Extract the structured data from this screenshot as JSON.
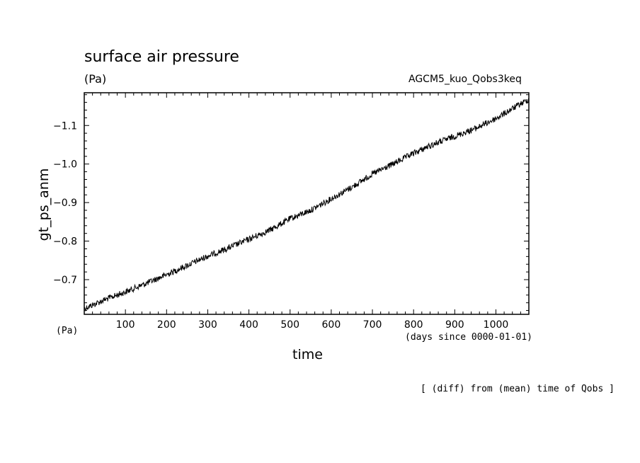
{
  "chart_data": {
    "type": "line",
    "title": "surface air pressure",
    "units": "(Pa)",
    "units_bottom": "(Pa)",
    "experiment": "AGCM5_kuo_Qobs3keq",
    "xlabel": "time",
    "xunits": "(days since 0000-01-01)",
    "ylabel": "gt_ps_anm",
    "footnote": "[ (diff) from (mean) time of Qobs ]",
    "xlim": [
      0,
      1080
    ],
    "ylim": [
      -0.61,
      -1.185
    ],
    "y_axis_reversed": true,
    "xticks": [
      100,
      200,
      300,
      400,
      500,
      600,
      700,
      800,
      900,
      1000
    ],
    "xtick_labels": [
      "100",
      "200",
      "300",
      "400",
      "500",
      "600",
      "700",
      "800",
      "900",
      "1000"
    ],
    "yticks": [
      -0.7,
      -0.8,
      -0.9,
      -1.0,
      -1.1
    ],
    "ytick_labels": [
      "-0.7",
      "-0.8",
      "-0.9",
      "-1.0",
      "-1.1"
    ],
    "series": [
      {
        "x": [
          0,
          50,
          100,
          150,
          200,
          250,
          300,
          350,
          400,
          450,
          500,
          550,
          600,
          650,
          700,
          750,
          800,
          850,
          900,
          950,
          1000,
          1050,
          1080
        ],
        "values": [
          -0.625,
          -0.648,
          -0.668,
          -0.69,
          -0.713,
          -0.737,
          -0.761,
          -0.782,
          -0.805,
          -0.828,
          -0.858,
          -0.88,
          -0.91,
          -0.94,
          -0.974,
          -1.0,
          -1.028,
          -1.052,
          -1.072,
          -1.092,
          -1.118,
          -1.15,
          -1.168
        ],
        "noise_amplitude": 0.008
      }
    ]
  }
}
